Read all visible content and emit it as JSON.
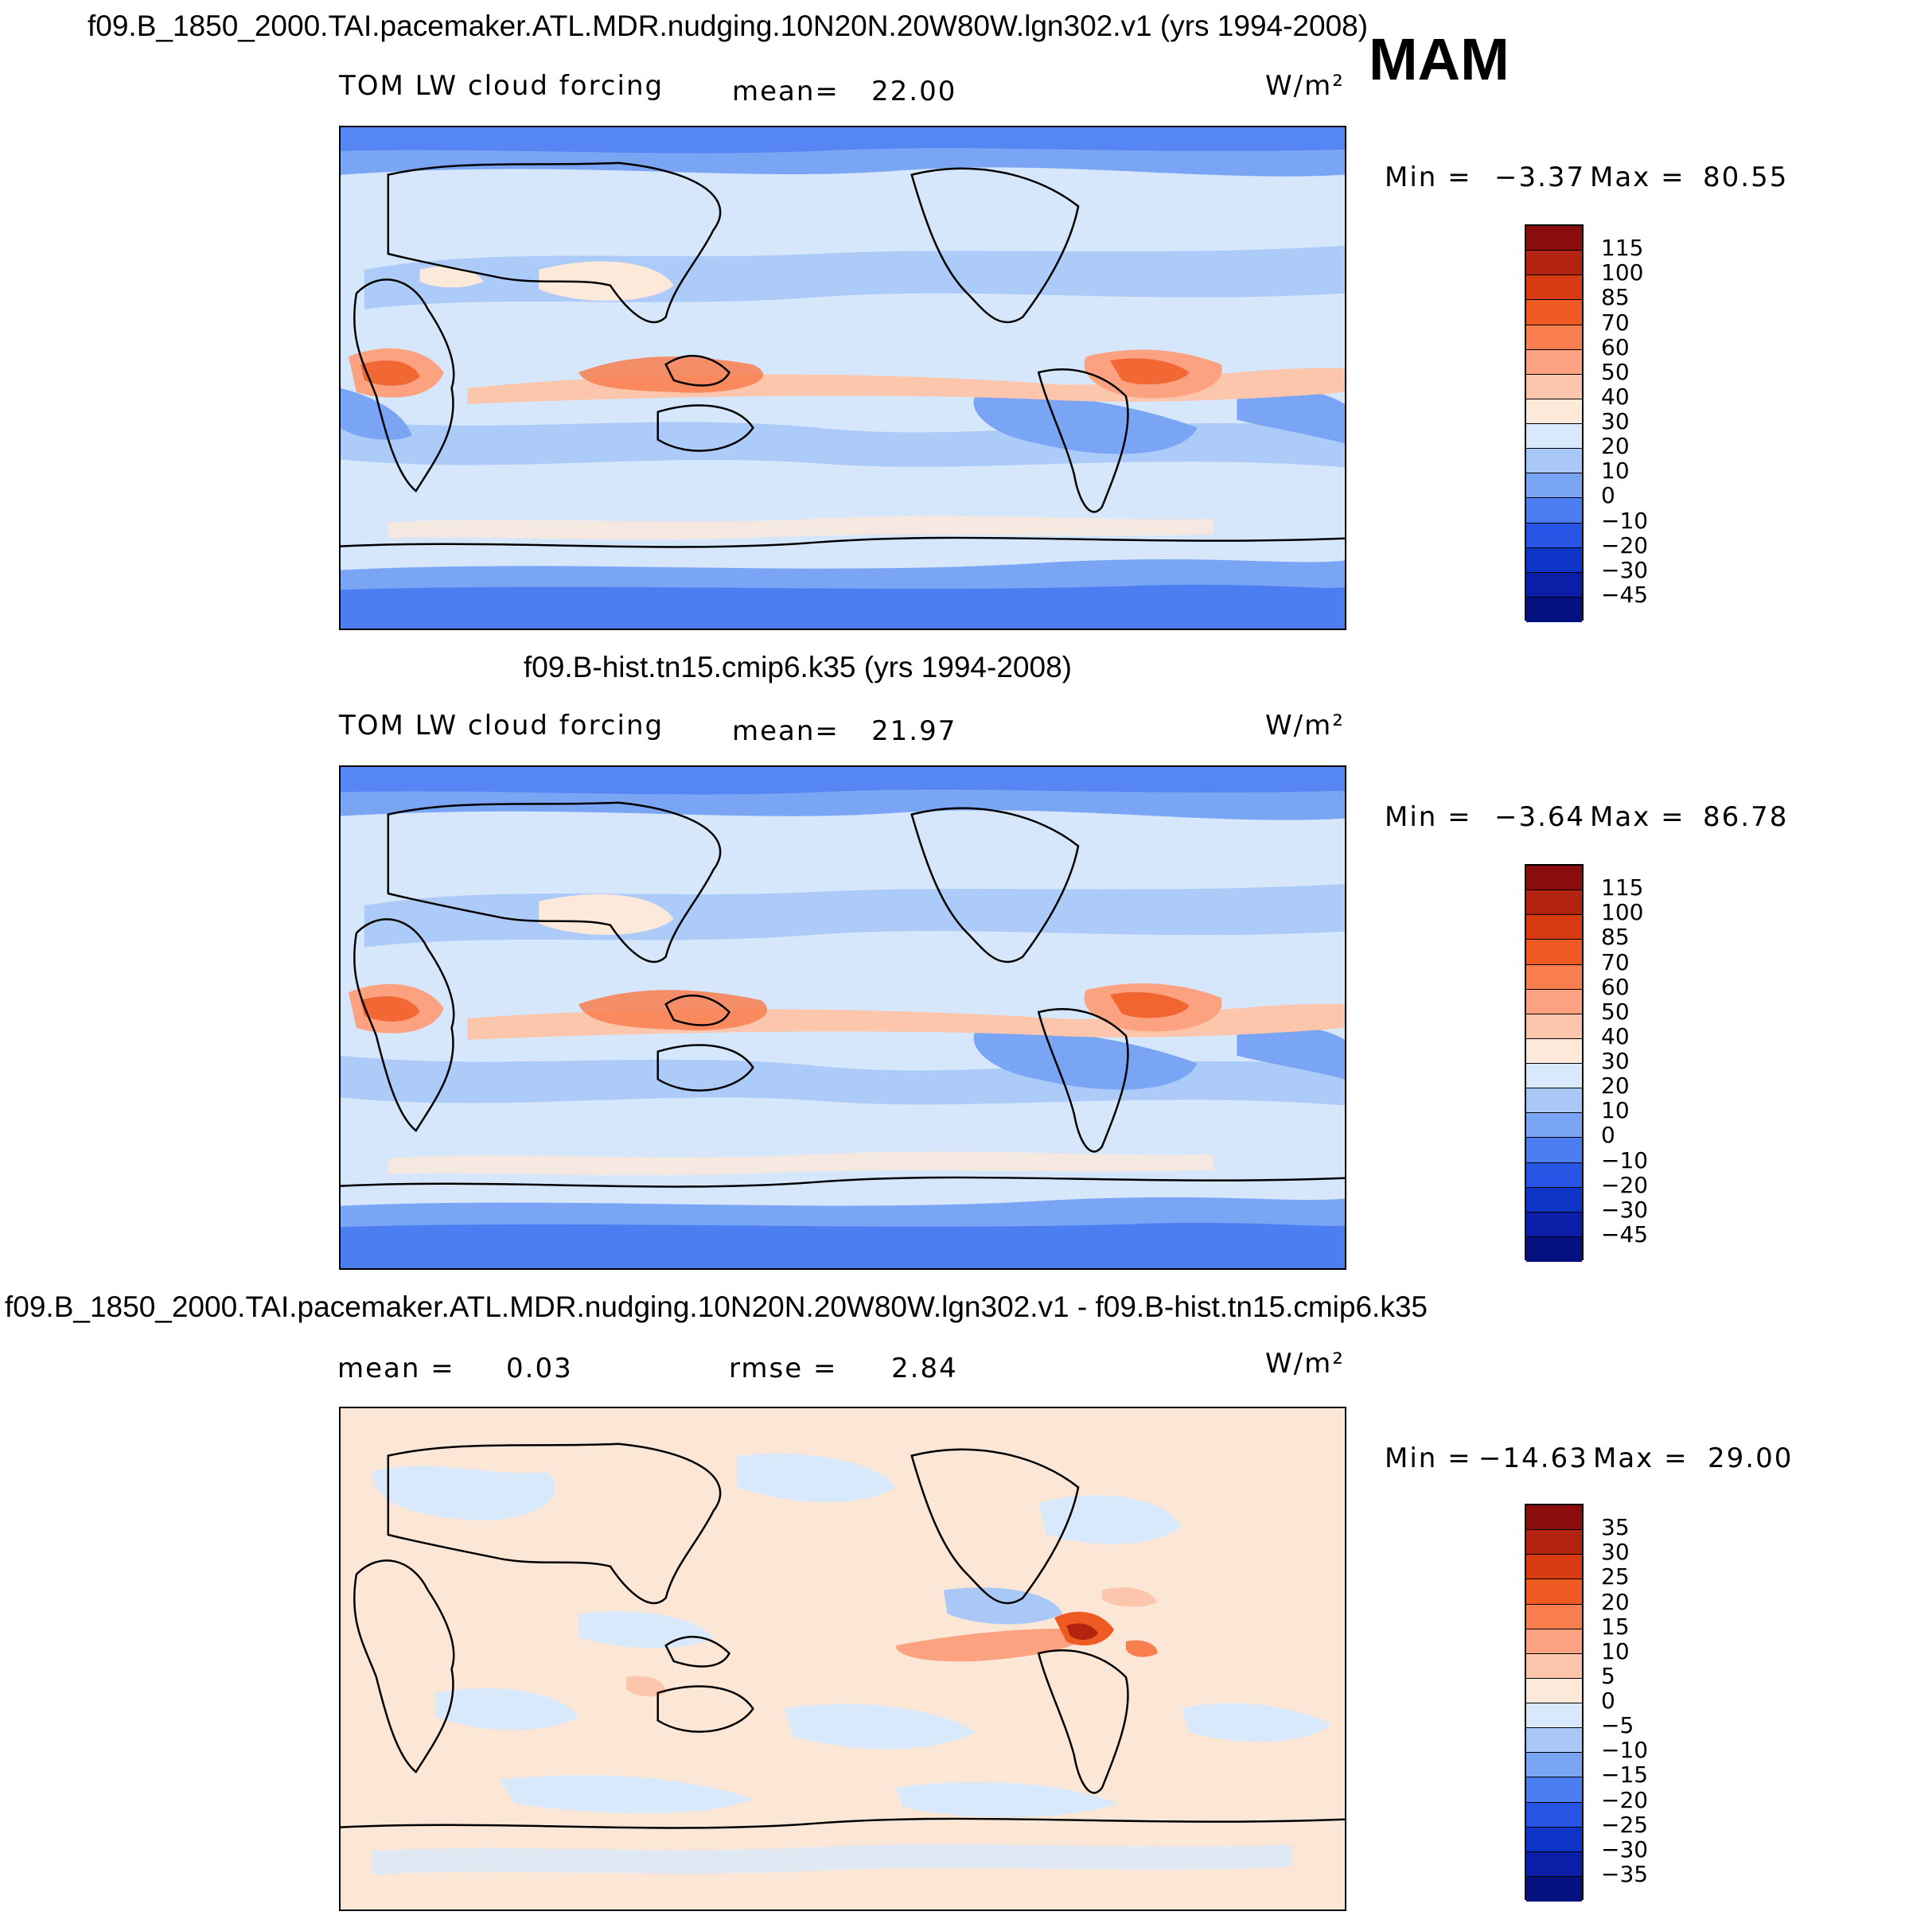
{
  "header": {
    "title": "f09.B_1850_2000.TAI.pacemaker.ATL.MDR.nudging.10N20N.20W80W.lgn302.v1 (yrs 1994-2008)",
    "season": "MAM"
  },
  "panels": [
    {
      "subtitle": "",
      "left_label": "TOM LW cloud forcing",
      "mean_label": "mean=",
      "mean_value": "22.00",
      "units": "W/m²",
      "min_label": "Min =",
      "min_value": "−3.37",
      "max_label": "Max =",
      "max_value": "80.55",
      "colorbar_levels": [
        "115",
        "100",
        "85",
        "70",
        "60",
        "50",
        "40",
        "30",
        "20",
        "10",
        "0",
        "−10",
        "−20",
        "−30",
        "−45"
      ]
    },
    {
      "subtitle": "f09.B-hist.tn15.cmip6.k35 (yrs 1994-2008)",
      "left_label": "TOM LW cloud forcing",
      "mean_label": "mean=",
      "mean_value": "21.97",
      "units": "W/m²",
      "min_label": "Min =",
      "min_value": "−3.64",
      "max_label": "Max =",
      "max_value": "86.78",
      "colorbar_levels": [
        "115",
        "100",
        "85",
        "70",
        "60",
        "50",
        "40",
        "30",
        "20",
        "10",
        "0",
        "−10",
        "−20",
        "−30",
        "−45"
      ]
    },
    {
      "subtitle": "f09.B_1850_2000.TAI.pacemaker.ATL.MDR.nudging.10N20N.20W80W.lgn302.v1 - f09.B-hist.tn15.cmip6.k35",
      "left_label": "mean =",
      "mean_label": "",
      "mean_value": "0.03",
      "rmse_label": "rmse =",
      "rmse_value": "2.84",
      "units": "W/m²",
      "min_label": "Min =",
      "min_value": "−14.63",
      "max_label": "Max =",
      "max_value": "29.00",
      "colorbar_levels": [
        "35",
        "30",
        "25",
        "20",
        "15",
        "10",
        "5",
        "0",
        "−5",
        "−10",
        "−15",
        "−20",
        "−25",
        "−30",
        "−35"
      ]
    }
  ],
  "colors": {
    "colorbar": [
      "#8a0c0c",
      "#b22410",
      "#d83a12",
      "#ee5a22",
      "#f97e4f",
      "#fca281",
      "#fcc6ac",
      "#fde9da",
      "#d8e9fb",
      "#a9c8f7",
      "#7aa4f4",
      "#4c7ef2",
      "#2855e5",
      "#0d36c8",
      "#0a1ea8",
      "#05117f"
    ],
    "ocean_base": "#d6e7fb",
    "diff_base": "#fce6d6"
  }
}
